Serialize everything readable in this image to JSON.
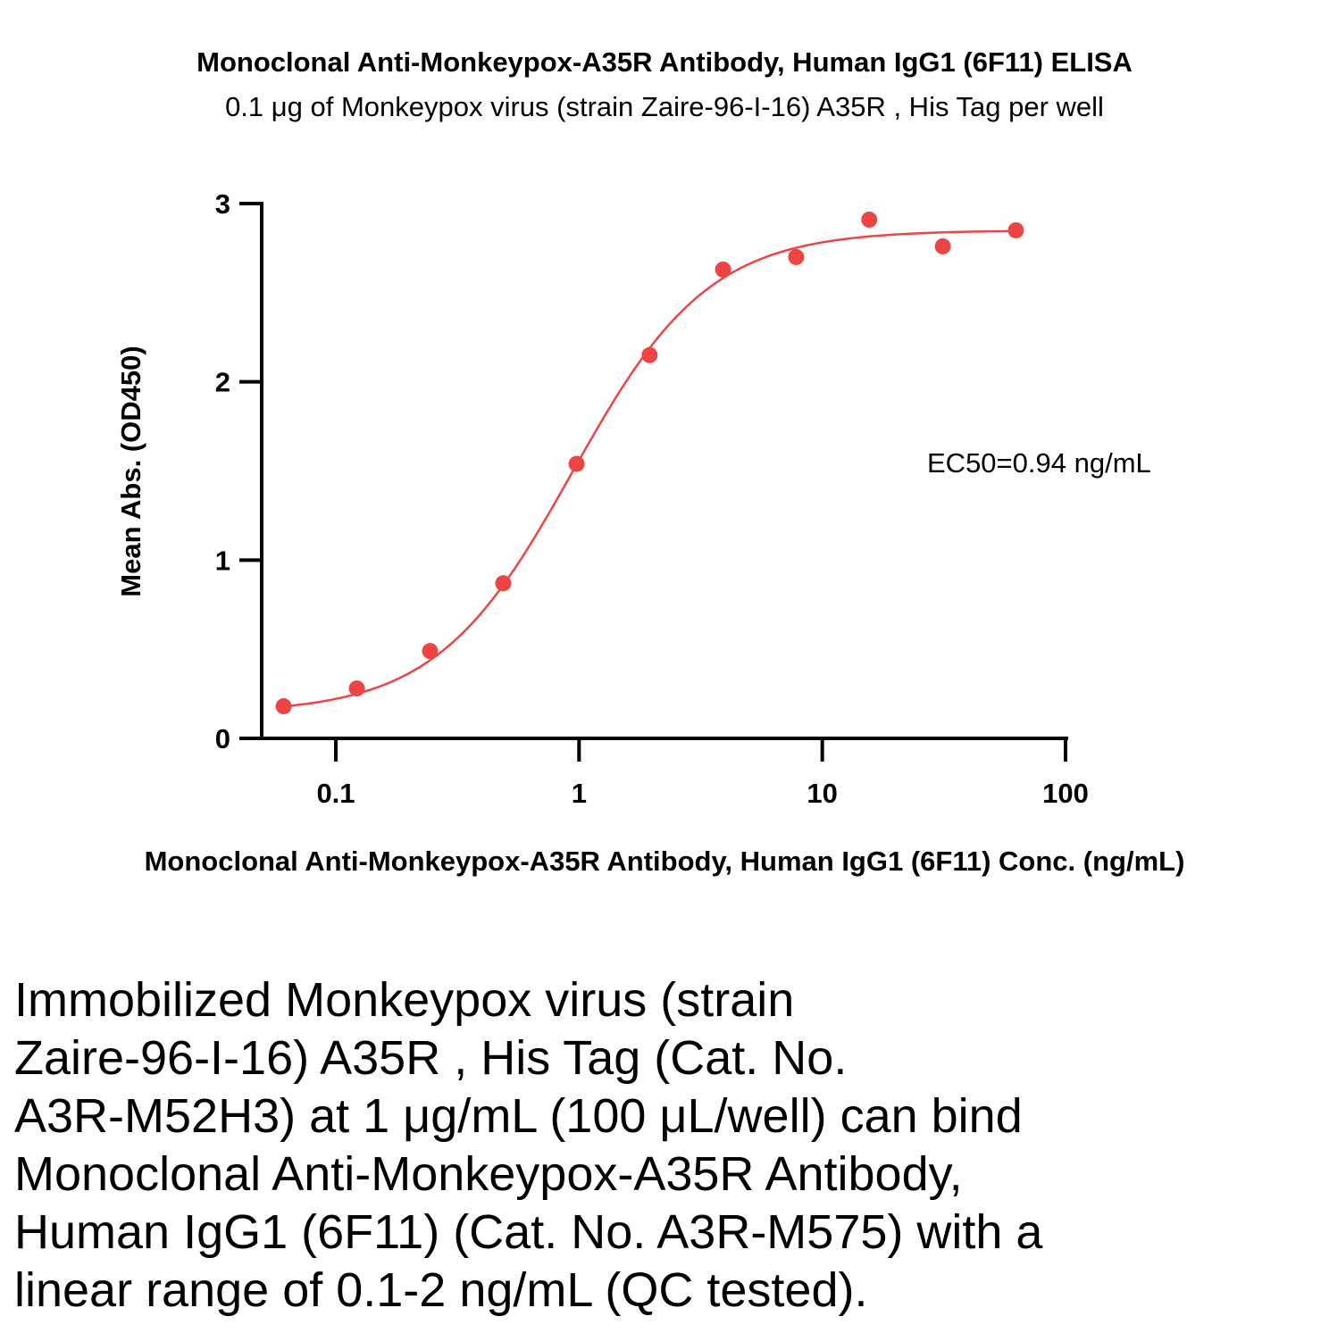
{
  "colors": {
    "series": "#ef4444",
    "axis": "#000000"
  },
  "chart_data": {
    "type": "scatter",
    "title": "Monoclonal Anti-Monkeypox-A35R Antibody, Human IgG1 (6F11) ELISA",
    "subtitle": "0.1 μg of Monkeypox virus (strain Zaire-96-I-16) A35R , His Tag per well",
    "xlabel": "Monoclonal Anti-Monkeypox-A35R Antibody, Human IgG1 (6F11) Conc. (ng/mL)",
    "ylabel": "Mean Abs. (OD450)",
    "x_scale": "log",
    "xlim": [
      0.05,
      100
    ],
    "ylim": [
      0,
      3
    ],
    "x_ticks": [
      {
        "value": 0.1,
        "label": "0.1"
      },
      {
        "value": 1,
        "label": "1"
      },
      {
        "value": 10,
        "label": "10"
      },
      {
        "value": 100,
        "label": "100"
      }
    ],
    "y_ticks": [
      {
        "value": 0,
        "label": "0"
      },
      {
        "value": 1,
        "label": "1"
      },
      {
        "value": 2,
        "label": "2"
      },
      {
        "value": 3,
        "label": "3"
      }
    ],
    "grid": false,
    "legend": "none",
    "annotation": "EC50=0.94 ng/mL",
    "series": [
      {
        "points": [
          {
            "x": 0.061,
            "y": 0.18
          },
          {
            "x": 0.122,
            "y": 0.28
          },
          {
            "x": 0.244,
            "y": 0.49
          },
          {
            "x": 0.488,
            "y": 0.87
          },
          {
            "x": 0.977,
            "y": 1.54
          },
          {
            "x": 1.95,
            "y": 2.15
          },
          {
            "x": 3.91,
            "y": 2.63
          },
          {
            "x": 7.81,
            "y": 2.7
          },
          {
            "x": 15.6,
            "y": 2.91
          },
          {
            "x": 31.3,
            "y": 2.76
          },
          {
            "x": 62.5,
            "y": 2.85
          }
        ]
      }
    ],
    "fit": {
      "model": "4PL",
      "bottom": 0.14,
      "top": 2.85,
      "ec50": 0.94,
      "hill": 1.55
    }
  },
  "caption": {
    "lines": [
      "Immobilized Monkeypox virus (strain",
      "Zaire-96-I-16) A35R , His Tag (Cat. No.",
      "A3R-M52H3) at 1 μg/mL (100 μL/well) can bind",
      "Monoclonal Anti-Monkeypox-A35R Antibody,",
      "Human IgG1 (6F11) (Cat. No. A3R-M575) with a",
      "linear range of 0.1-2 ng/mL (QC tested)."
    ]
  }
}
